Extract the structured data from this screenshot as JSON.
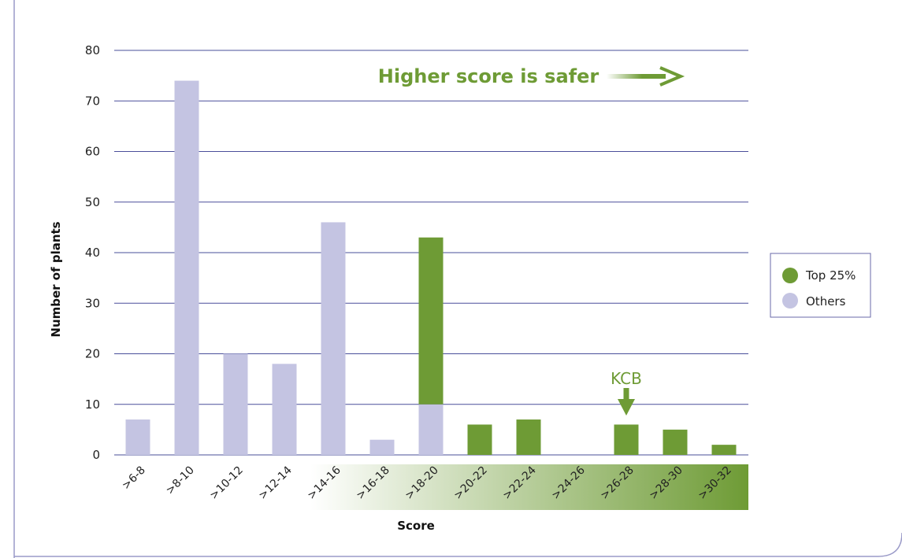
{
  "chart_data": {
    "type": "bar",
    "xlabel": "Score",
    "ylabel": "Number of plants",
    "ylim": [
      0,
      80
    ],
    "yticks": [
      0,
      10,
      20,
      30,
      40,
      50,
      60,
      70,
      80
    ],
    "categories": [
      ">6-8",
      ">8-10",
      ">10-12",
      ">12-14",
      ">14-16",
      ">16-18",
      ">18-20",
      ">20-22",
      ">22-24",
      ">24-26",
      ">26-28",
      ">28-30",
      ">30-32"
    ],
    "series": [
      {
        "name": "Others",
        "values": [
          7,
          74,
          20,
          18,
          46,
          3,
          10,
          0,
          0,
          0,
          0,
          0,
          0
        ]
      },
      {
        "name": "Top 25%",
        "values": [
          0,
          0,
          0,
          0,
          0,
          0,
          33,
          6,
          7,
          0,
          6,
          5,
          2
        ]
      }
    ],
    "stacked": true,
    "grid": true,
    "legend_position": "right",
    "annotations": {
      "direction_text": "Higher score is safer",
      "marker_label": "KCB",
      "marker_category": ">26-28"
    },
    "colors": {
      "top": "#6e9b35",
      "others": "#c4c4e2",
      "grid": "#4a4f9a",
      "frame": "#9a9ac8",
      "accent": "#6e9b35"
    }
  }
}
